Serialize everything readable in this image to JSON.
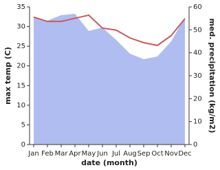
{
  "chart_data": {
    "type": "line-area",
    "categories": [
      "Jan",
      "Feb",
      "Mar",
      "Apr",
      "May",
      "Jun",
      "Jul",
      "Aug",
      "Sep",
      "Oct",
      "Nov",
      "Dec"
    ],
    "x_label": "date (month)",
    "y_label": "max temp (C)",
    "y2_label": "med. precipitation (kg/m2)",
    "ylim": [
      0,
      35
    ],
    "yticks": [
      0,
      5,
      10,
      15,
      20,
      25,
      30,
      35
    ],
    "y2lim": [
      0,
      60
    ],
    "y2ticks": [
      0,
      10,
      20,
      30,
      40,
      50,
      60
    ],
    "series": [
      {
        "name": "med. precipitation",
        "type": "area",
        "axis": "y2",
        "color": "#b0bdf0",
        "values": [
          55.5,
          54,
          56.4,
          57,
          49.5,
          51,
          45.6,
          39.6,
          37.2,
          38.4,
          45,
          55.5
        ]
      },
      {
        "name": "max temp",
        "type": "line",
        "color": "#c85a5a",
        "values": [
          32.4,
          31.3,
          31.3,
          32.1,
          32.9,
          29.6,
          29.1,
          27.1,
          25.9,
          25.2,
          27.7,
          32.0
        ]
      }
    ]
  }
}
